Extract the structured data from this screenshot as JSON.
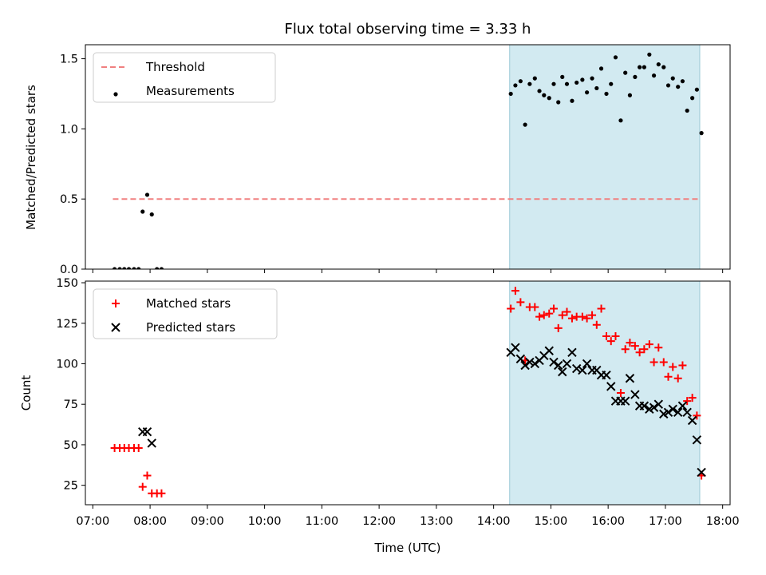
{
  "chart_data": [
    {
      "type": "scatter",
      "title": "Flux total observing time = 3.33 h",
      "ylabel": "Matched/Predicted stars",
      "xlim": [
        6.87,
        18.13
      ],
      "ylim": [
        0,
        1.6
      ],
      "yticks": [
        0.0,
        0.5,
        1.0,
        1.5
      ],
      "ytick_labels": [
        "0.0",
        "0.5",
        "1.0",
        "1.5"
      ],
      "x_tick_labels_shown": false,
      "highlight_span": {
        "x": [
          14.28,
          17.6
        ],
        "color": "#add8e6"
      },
      "threshold": {
        "name": "Threshold",
        "y": 0.5,
        "x": [
          7.35,
          17.6
        ],
        "color": "#f08080",
        "style": "dashed"
      },
      "legend": {
        "position": "upper left",
        "entries": [
          "Threshold",
          "Measurements"
        ]
      },
      "series": [
        {
          "name": "Measurements",
          "color": "#000000",
          "marker": "dot",
          "points": [
            [
              7.38,
              0.0
            ],
            [
              7.47,
              0.0
            ],
            [
              7.55,
              0.0
            ],
            [
              7.63,
              0.0
            ],
            [
              7.72,
              0.0
            ],
            [
              7.8,
              0.0
            ],
            [
              7.87,
              0.41
            ],
            [
              7.95,
              0.53
            ],
            [
              8.03,
              0.39
            ],
            [
              8.12,
              0.0
            ],
            [
              8.2,
              0.0
            ],
            [
              14.3,
              1.25
            ],
            [
              14.38,
              1.31
            ],
            [
              14.47,
              1.34
            ],
            [
              14.55,
              1.03
            ],
            [
              14.63,
              1.32
            ],
            [
              14.72,
              1.36
            ],
            [
              14.8,
              1.27
            ],
            [
              14.88,
              1.24
            ],
            [
              14.97,
              1.22
            ],
            [
              15.05,
              1.32
            ],
            [
              15.13,
              1.19
            ],
            [
              15.2,
              1.37
            ],
            [
              15.28,
              1.32
            ],
            [
              15.37,
              1.2
            ],
            [
              15.45,
              1.33
            ],
            [
              15.55,
              1.35
            ],
            [
              15.63,
              1.26
            ],
            [
              15.72,
              1.36
            ],
            [
              15.8,
              1.29
            ],
            [
              15.88,
              1.43
            ],
            [
              15.97,
              1.25
            ],
            [
              16.05,
              1.32
            ],
            [
              16.13,
              1.51
            ],
            [
              16.22,
              1.06
            ],
            [
              16.3,
              1.4
            ],
            [
              16.38,
              1.24
            ],
            [
              16.47,
              1.37
            ],
            [
              16.55,
              1.44
            ],
            [
              16.63,
              1.44
            ],
            [
              16.72,
              1.53
            ],
            [
              16.8,
              1.38
            ],
            [
              16.88,
              1.46
            ],
            [
              16.97,
              1.44
            ],
            [
              17.05,
              1.31
            ],
            [
              17.13,
              1.36
            ],
            [
              17.22,
              1.3
            ],
            [
              17.3,
              1.34
            ],
            [
              17.38,
              1.13
            ],
            [
              17.47,
              1.22
            ],
            [
              17.55,
              1.28
            ],
            [
              17.63,
              0.97
            ]
          ]
        }
      ]
    },
    {
      "type": "scatter",
      "xlabel": "Time (UTC)",
      "ylabel": "Count",
      "xlim": [
        6.87,
        18.13
      ],
      "ylim": [
        13,
        151
      ],
      "xticks": [
        7,
        8,
        9,
        10,
        11,
        12,
        13,
        14,
        15,
        16,
        17,
        18
      ],
      "xtick_labels": [
        "07:00",
        "08:00",
        "09:00",
        "10:00",
        "11:00",
        "12:00",
        "13:00",
        "14:00",
        "15:00",
        "16:00",
        "17:00",
        "18:00"
      ],
      "yticks": [
        25,
        50,
        75,
        100,
        125,
        150
      ],
      "ytick_labels": [
        "25",
        "50",
        "75",
        "100",
        "125",
        "150"
      ],
      "highlight_span": {
        "x": [
          14.28,
          17.6
        ],
        "color": "#add8e6"
      },
      "legend": {
        "position": "upper left",
        "entries": [
          "Matched stars",
          "Predicted stars"
        ]
      },
      "series": [
        {
          "name": "Matched stars",
          "color": "#ff0000",
          "marker": "plus",
          "points": [
            [
              7.38,
              48
            ],
            [
              7.47,
              48
            ],
            [
              7.55,
              48
            ],
            [
              7.63,
              48
            ],
            [
              7.72,
              48
            ],
            [
              7.8,
              48
            ],
            [
              7.87,
              24
            ],
            [
              7.95,
              31
            ],
            [
              8.03,
              20
            ],
            [
              8.12,
              20
            ],
            [
              8.2,
              20
            ],
            [
              14.3,
              134
            ],
            [
              14.38,
              145
            ],
            [
              14.47,
              138
            ],
            [
              14.55,
              102
            ],
            [
              14.63,
              135
            ],
            [
              14.72,
              135
            ],
            [
              14.8,
              129
            ],
            [
              14.88,
              130
            ],
            [
              14.97,
              131
            ],
            [
              15.05,
              134
            ],
            [
              15.13,
              122
            ],
            [
              15.2,
              130
            ],
            [
              15.28,
              132
            ],
            [
              15.37,
              128
            ],
            [
              15.45,
              129
            ],
            [
              15.55,
              129
            ],
            [
              15.63,
              128
            ],
            [
              15.72,
              130
            ],
            [
              15.8,
              124
            ],
            [
              15.88,
              134
            ],
            [
              15.97,
              117
            ],
            [
              16.05,
              114
            ],
            [
              16.13,
              117
            ],
            [
              16.22,
              82
            ],
            [
              16.3,
              109
            ],
            [
              16.38,
              113
            ],
            [
              16.47,
              111
            ],
            [
              16.55,
              107
            ],
            [
              16.63,
              109
            ],
            [
              16.72,
              112
            ],
            [
              16.8,
              101
            ],
            [
              16.88,
              110
            ],
            [
              16.97,
              101
            ],
            [
              17.05,
              92
            ],
            [
              17.13,
              98
            ],
            [
              17.22,
              91
            ],
            [
              17.3,
              99
            ],
            [
              17.38,
              77
            ],
            [
              17.47,
              79
            ],
            [
              17.55,
              68
            ],
            [
              17.63,
              31
            ]
          ]
        },
        {
          "name": "Predicted stars",
          "color": "#000000",
          "marker": "x",
          "points": [
            [
              7.87,
              58
            ],
            [
              7.95,
              58
            ],
            [
              8.03,
              51
            ],
            [
              14.3,
              107
            ],
            [
              14.38,
              110
            ],
            [
              14.47,
              103
            ],
            [
              14.55,
              99
            ],
            [
              14.63,
              101
            ],
            [
              14.72,
              100
            ],
            [
              14.8,
              102
            ],
            [
              14.88,
              105
            ],
            [
              14.97,
              108
            ],
            [
              15.05,
              101
            ],
            [
              15.13,
              99
            ],
            [
              15.2,
              95
            ],
            [
              15.28,
              100
            ],
            [
              15.37,
              107
            ],
            [
              15.45,
              97
            ],
            [
              15.55,
              96
            ],
            [
              15.63,
              100
            ],
            [
              15.72,
              96
            ],
            [
              15.8,
              96
            ],
            [
              15.88,
              93
            ],
            [
              15.97,
              93
            ],
            [
              16.05,
              86
            ],
            [
              16.13,
              77
            ],
            [
              16.22,
              77
            ],
            [
              16.3,
              77
            ],
            [
              16.38,
              91
            ],
            [
              16.47,
              81
            ],
            [
              16.55,
              74
            ],
            [
              16.63,
              74
            ],
            [
              16.72,
              72
            ],
            [
              16.8,
              73
            ],
            [
              16.88,
              75
            ],
            [
              16.97,
              69
            ],
            [
              17.05,
              70
            ],
            [
              17.13,
              72
            ],
            [
              17.22,
              70
            ],
            [
              17.3,
              74
            ],
            [
              17.38,
              70
            ],
            [
              17.47,
              65
            ],
            [
              17.55,
              53
            ],
            [
              17.63,
              33
            ]
          ]
        }
      ]
    }
  ]
}
